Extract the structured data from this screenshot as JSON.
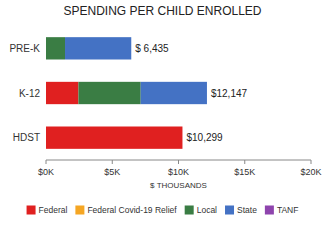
{
  "chart_data": {
    "type": "bar",
    "orientation": "horizontal",
    "stacked": true,
    "title": "SPENDING PER CHILD ENROLLED",
    "categories": [
      "HDST",
      "K-12",
      "PRE-K"
    ],
    "series": [
      {
        "name": "Federal",
        "color": "#e02020",
        "values": [
          10299,
          2447,
          0
        ]
      },
      {
        "name": "Federal Covid-19 Relief",
        "color": "#f5a623",
        "values": [
          0,
          0,
          0
        ]
      },
      {
        "name": "Local",
        "color": "#3a7d44",
        "values": [
          0,
          4700,
          1435
        ]
      },
      {
        "name": "State",
        "color": "#4472c4",
        "values": [
          0,
          5000,
          5000
        ]
      },
      {
        "name": "TANF",
        "color": "#8e44ad",
        "values": [
          0,
          0,
          0
        ]
      }
    ],
    "totals": [
      10299,
      12147,
      6435
    ],
    "total_labels": [
      "$10,299",
      "$12,147",
      "$ 6,435"
    ],
    "xlabel": "$ THOUSANDS",
    "xlim": [
      0,
      20000
    ],
    "xticks": [
      {
        "value": 0,
        "label": "$0K"
      },
      {
        "value": 5000,
        "label": "$5K"
      },
      {
        "value": 10000,
        "label": "$10K"
      },
      {
        "value": 15000,
        "label": "$15K"
      },
      {
        "value": 20000,
        "label": "$20K"
      }
    ],
    "grid": false,
    "legend": "bottom"
  }
}
